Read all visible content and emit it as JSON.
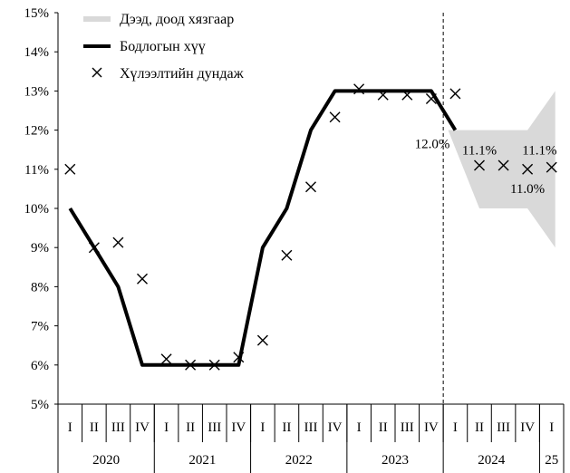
{
  "chart_data": {
    "type": "line",
    "x_quarters": [
      "I",
      "II",
      "III",
      "IV",
      "I",
      "II",
      "III",
      "IV",
      "I",
      "II",
      "III",
      "IV",
      "I",
      "II",
      "III",
      "IV",
      "I",
      "II",
      "III",
      "IV",
      "I"
    ],
    "year_groups": [
      {
        "label": "2020",
        "quarters": 4
      },
      {
        "label": "2021",
        "quarters": 4
      },
      {
        "label": "2022",
        "quarters": 4
      },
      {
        "label": "2023",
        "quarters": 4
      },
      {
        "label": "2024",
        "quarters": 4
      },
      {
        "label": "25",
        "quarters": 1
      }
    ],
    "ylim": [
      5,
      15
    ],
    "yticks": [
      "5%",
      "6%",
      "7%",
      "8%",
      "9%",
      "10%",
      "11%",
      "12%",
      "13%",
      "14%",
      "15%"
    ],
    "forecast_divider_after_index": 15.5,
    "legend": {
      "band": "Дээд, доод хязгаар",
      "policy": "Бодлогын хүү",
      "expectation": "Хүлээлтийн дундаж"
    },
    "series": [
      {
        "name": "Бодлогын хүү",
        "style": "line",
        "color": "#000000",
        "values": [
          10,
          9,
          8,
          6,
          6,
          6,
          6,
          6,
          9,
          10,
          12,
          13,
          13,
          13,
          13,
          13,
          12,
          null,
          null,
          null,
          null
        ]
      },
      {
        "name": "Хүлээлтийн дундаж",
        "style": "x-marker",
        "color": "#000000",
        "values": [
          11.0,
          9.0,
          9.13,
          8.2,
          6.15,
          6.0,
          6.0,
          6.2,
          6.63,
          8.8,
          10.55,
          12.33,
          13.05,
          12.9,
          12.9,
          12.8,
          12.93,
          11.1,
          11.1,
          11.0,
          11.05
        ]
      },
      {
        "name": "Дээд, доод хязгаар",
        "style": "band",
        "color": "#d9d9d9",
        "x_start": 15.7,
        "upper": [
          12.0,
          12.0,
          12.0,
          12.0,
          13.0
        ],
        "lower": [
          12.0,
          10.0,
          10.0,
          10.0,
          9.0
        ]
      }
    ],
    "data_labels": [
      {
        "text": "12.0%",
        "index": 16,
        "value": 12.0,
        "pos": "left"
      },
      {
        "text": "11.1%",
        "index": 17,
        "value": 11.1,
        "pos": "above"
      },
      {
        "text": "11.1%",
        "index": 19.5,
        "value": 11.1,
        "pos": "above"
      },
      {
        "text": "11.0%",
        "index": 19,
        "value": 11.0,
        "pos": "below"
      }
    ]
  }
}
